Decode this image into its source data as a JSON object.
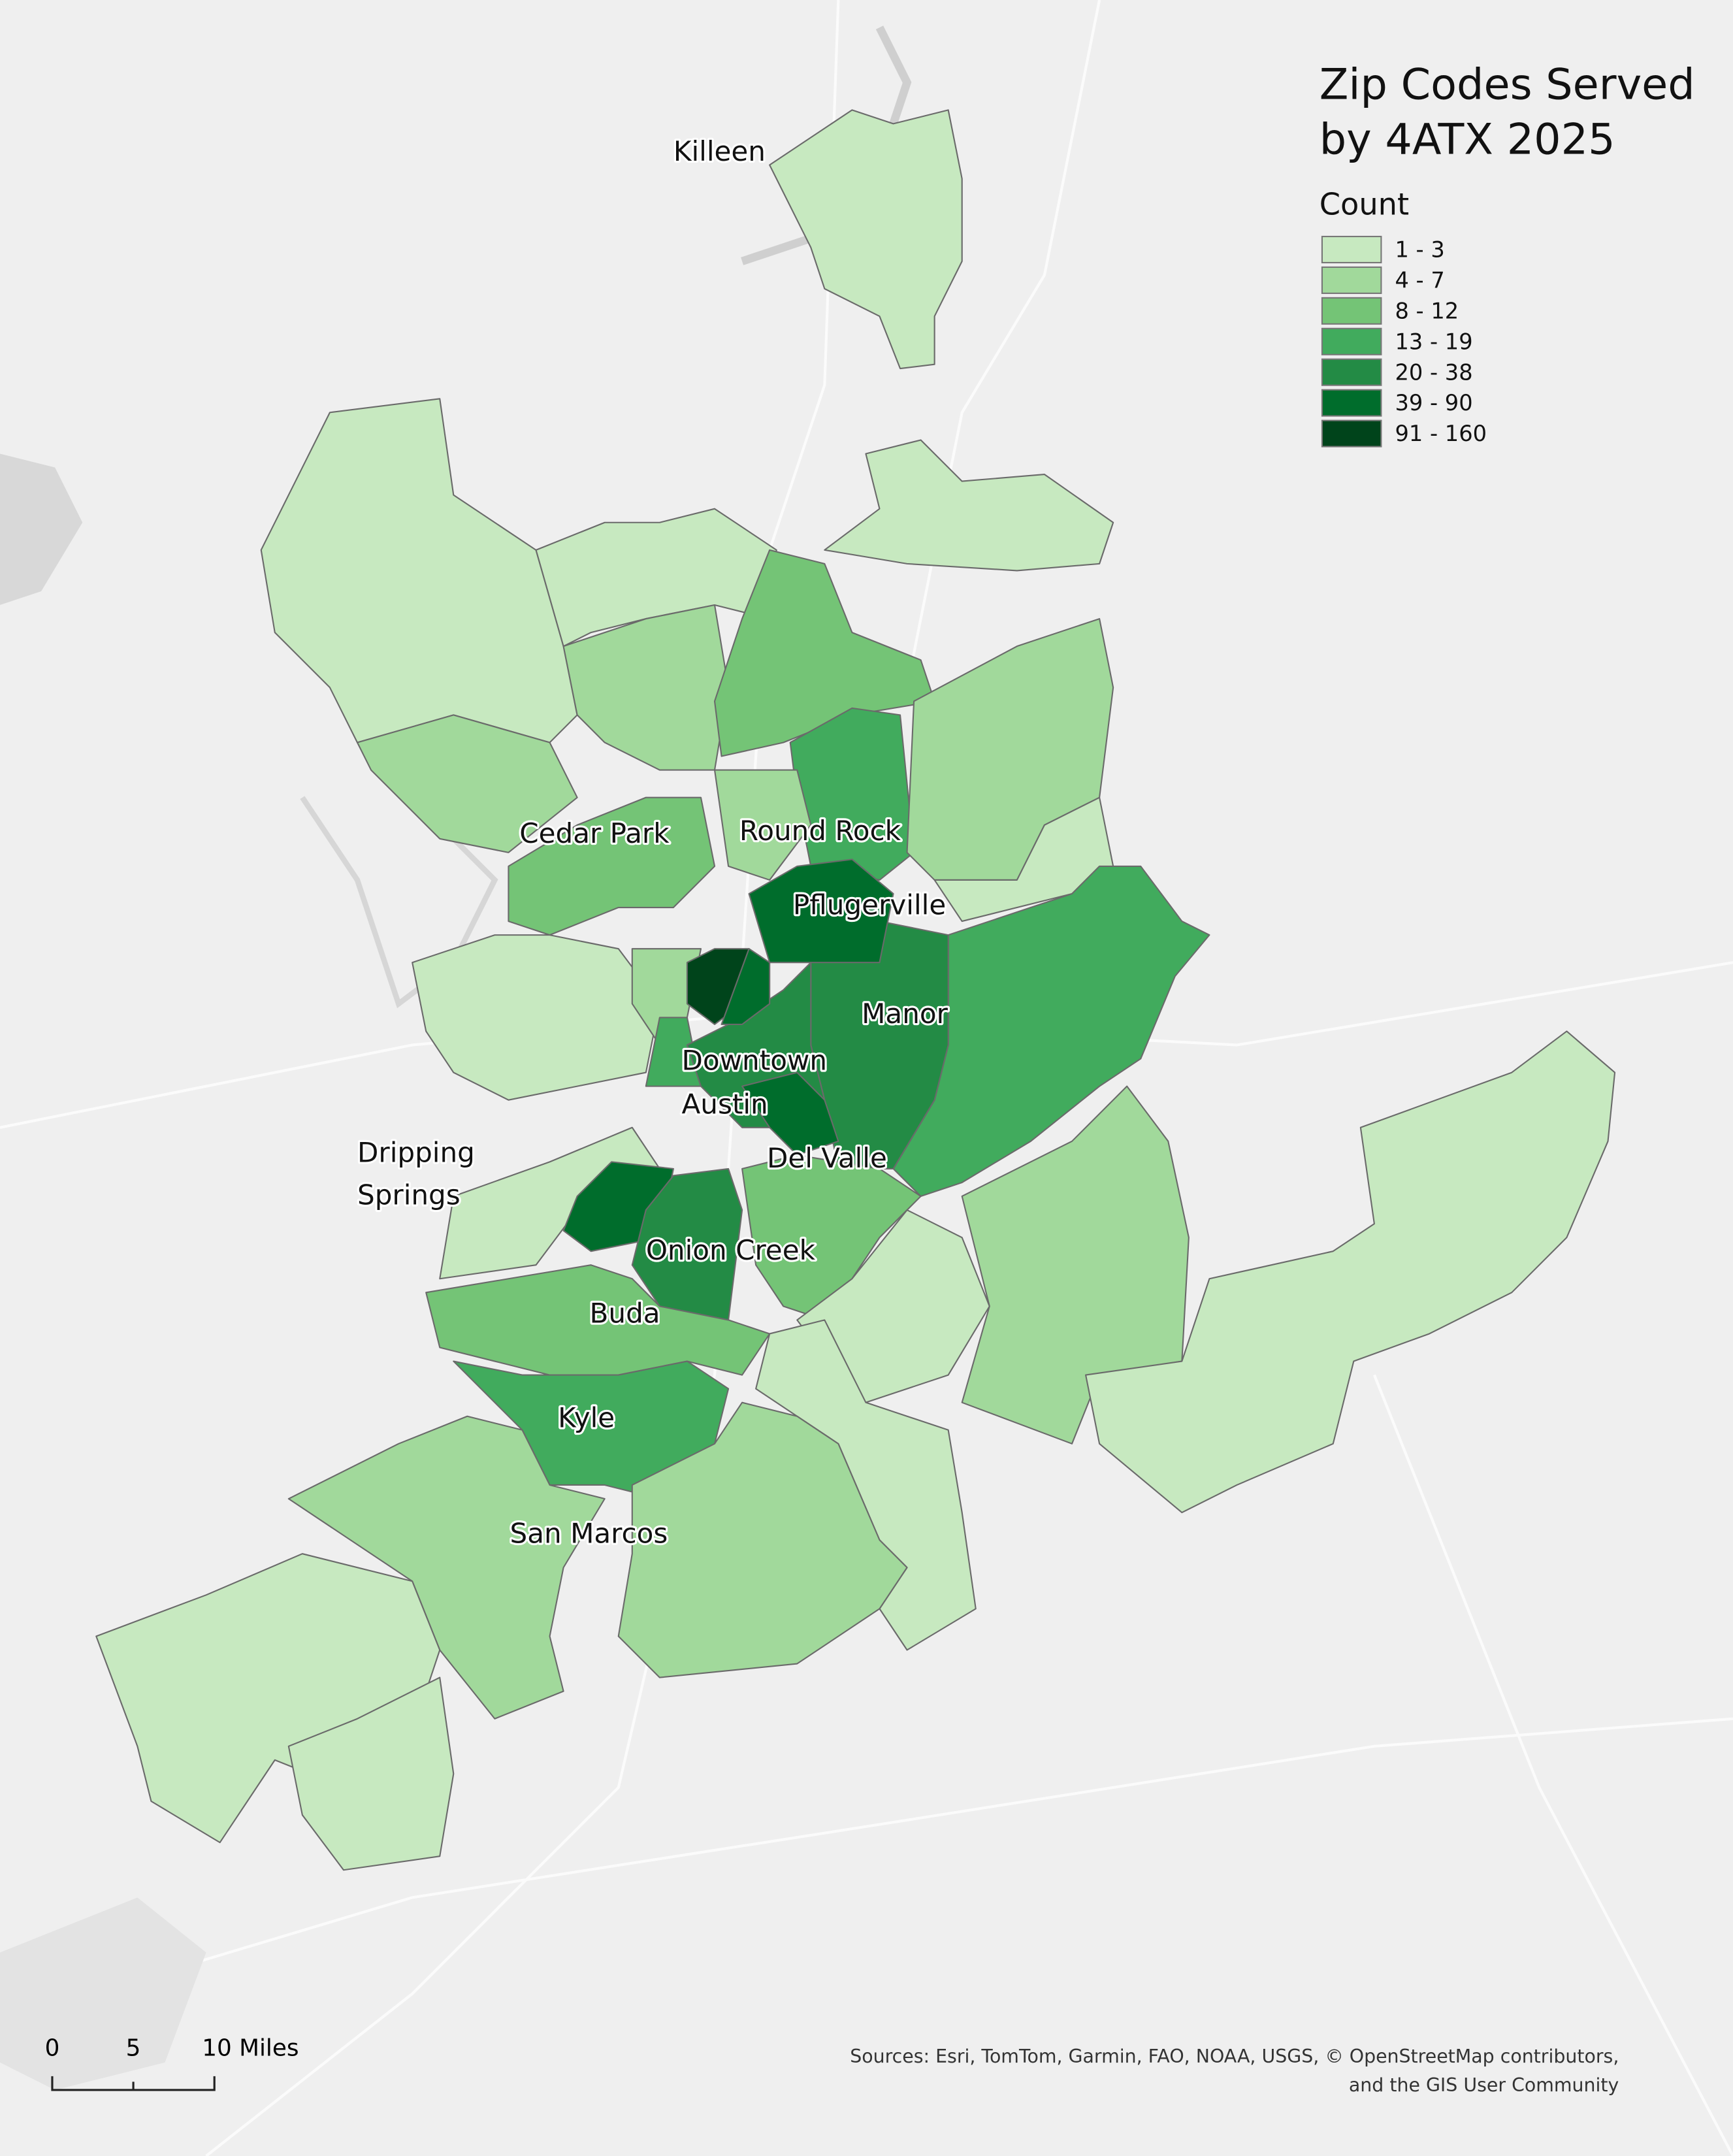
{
  "title": [
    "Zip Codes Served",
    "by 4ATX 2025"
  ],
  "legend": {
    "title": "Count",
    "classes": [
      {
        "label": "1 - 3",
        "color": "#c7e9c0"
      },
      {
        "label": "4 - 7",
        "color": "#a1d99b"
      },
      {
        "label": "8 - 12",
        "color": "#74c476"
      },
      {
        "label": "13 - 19",
        "color": "#41ab5d"
      },
      {
        "label": "20 - 38",
        "color": "#238b45"
      },
      {
        "label": "39 - 90",
        "color": "#006d2c"
      },
      {
        "label": "91 - 160",
        "color": "#00441b"
      }
    ]
  },
  "places": [
    "Killeen",
    "Cedar Park",
    "Round Rock",
    "Pflugerville",
    "Manor",
    "Downtown",
    "Austin",
    "Dripping",
    "Springs",
    "Del Valle",
    "Onion Creek",
    "Buda",
    "Kyle",
    "San Marcos"
  ],
  "scale_bar": [
    "0",
    "5",
    "10 Miles"
  ],
  "sources": [
    "Sources: Esri, TomTom, Garmin, FAO, NOAA, USGS, © OpenStreetMap contributors,",
    "and the GIS User Community"
  ]
}
